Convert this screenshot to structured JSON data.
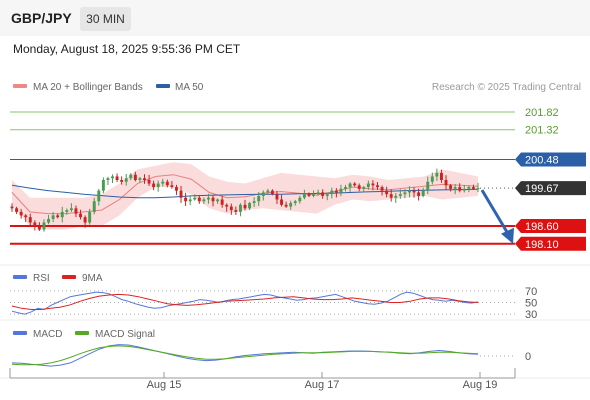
{
  "header": {
    "pair": "GBP/JPY",
    "timeframe": "30 MIN",
    "datetime": "Monday, August 18, 2025 9:55:36 PM CET"
  },
  "legend": {
    "ma_bb": "MA 20 + Bollinger Bands",
    "ma50": "MA 50",
    "copyright": "Research © 2025 Trading Central",
    "rsi": "RSI",
    "rsi_ma": "9MA",
    "macd": "MACD",
    "macd_signal": "MACD Signal"
  },
  "colors": {
    "bull": "#4a9a52",
    "bear": "#cc2222",
    "bb_fill": "#f8d0d0",
    "ma20": "#e88080",
    "ma50": "#2b5fa8",
    "resistance": "#2b5fa8",
    "support": "#dd1111",
    "target": "#8bc46a",
    "arrow": "#2f63b0",
    "rsi": "#5577dd",
    "rsi_ma": "#dd2222",
    "macd": "#5577dd",
    "macd_signal": "#55aa22"
  },
  "chart_data": {
    "type": "candlestick",
    "ylim": [
      197.5,
      202.3
    ],
    "price_levels": [
      {
        "value": 201.82,
        "label": "201.82",
        "kind": "target"
      },
      {
        "value": 201.32,
        "label": "201.32",
        "kind": "target"
      },
      {
        "value": 200.48,
        "label": "200.48",
        "kind": "resistance"
      },
      {
        "value": 199.67,
        "label": "199.67",
        "kind": "last"
      },
      {
        "value": 198.6,
        "label": "198.60",
        "kind": "support"
      },
      {
        "value": 198.1,
        "label": "198.10",
        "kind": "support"
      }
    ],
    "forecast_arrow": {
      "from": 199.67,
      "to": 198.1
    },
    "x_ticks": [
      "Aug 15",
      "Aug 17",
      "Aug 19"
    ],
    "closes": [
      199.1,
      199.0,
      198.9,
      198.85,
      198.7,
      198.6,
      198.5,
      198.7,
      198.8,
      198.9,
      198.85,
      199.0,
      199.05,
      199.1,
      198.95,
      198.85,
      198.7,
      199.0,
      199.3,
      199.6,
      199.9,
      199.95,
      200.0,
      199.9,
      199.85,
      199.95,
      200.05,
      199.9,
      199.95,
      199.9,
      199.8,
      199.7,
      199.8,
      199.85,
      199.75,
      199.7,
      199.6,
      199.4,
      199.3,
      199.35,
      199.4,
      199.3,
      199.35,
      199.4,
      199.3,
      199.35,
      199.2,
      199.15,
      199.05,
      199.0,
      199.2,
      199.1,
      199.25,
      199.3,
      199.45,
      199.55,
      199.6,
      199.5,
      199.35,
      199.2,
      199.15,
      199.25,
      199.3,
      199.4,
      199.5,
      199.45,
      199.5,
      199.55,
      199.45,
      199.5,
      199.6,
      199.55,
      199.65,
      199.7,
      199.8,
      199.75,
      199.65,
      199.7,
      199.8,
      199.75,
      199.7,
      199.6,
      199.5,
      199.4,
      199.45,
      199.5,
      199.55,
      199.6,
      199.55,
      199.45,
      199.6,
      199.85,
      200.0,
      200.1,
      199.9,
      199.75,
      199.65,
      199.7,
      199.6,
      199.65,
      199.7,
      199.65,
      199.67
    ],
    "bb_upper": [
      199.9,
      199.4,
      199.4,
      199.4,
      199.4,
      199.5,
      199.8,
      200.2,
      200.3,
      200.4,
      200.35,
      200.0,
      199.85,
      199.8,
      199.95,
      200.1,
      200.05,
      200.0,
      199.95,
      200.05,
      200.0,
      199.9,
      199.95,
      200.0,
      200.2,
      200.1,
      200.0
    ],
    "bb_lower": [
      199.2,
      198.6,
      198.5,
      198.5,
      198.6,
      198.6,
      198.9,
      199.4,
      199.7,
      199.7,
      199.5,
      199.1,
      198.95,
      199.05,
      199.1,
      199.05,
      199.0,
      198.95,
      199.2,
      199.35,
      199.3,
      199.35,
      199.4,
      199.45,
      199.35,
      199.4,
      199.45
    ],
    "ma50": [
      199.75,
      199.67,
      199.6,
      199.55,
      199.5,
      199.46,
      199.42,
      199.4,
      199.4,
      199.42,
      199.45,
      199.47,
      199.48,
      199.49,
      199.5,
      199.5,
      199.51,
      199.52,
      199.53,
      199.55,
      199.57,
      199.58,
      199.6,
      199.61,
      199.62,
      199.63,
      199.64
    ],
    "rsi": {
      "levels": [
        70,
        50,
        30
      ],
      "ylim": [
        25,
        75
      ],
      "values": [
        35,
        32,
        30,
        34,
        40,
        38,
        45,
        50,
        55,
        60,
        62,
        64,
        66,
        68,
        67,
        65,
        60,
        55,
        52,
        48,
        45,
        42,
        40,
        41,
        44,
        46,
        48,
        50,
        52,
        55,
        54,
        52,
        50,
        53,
        55,
        56,
        58,
        60,
        62,
        64,
        63,
        60,
        58,
        56,
        54,
        55,
        57,
        58,
        60,
        62,
        64,
        60,
        56,
        52,
        50,
        48,
        47,
        49,
        52,
        58,
        64,
        68,
        66,
        62,
        58,
        55,
        54,
        52,
        54,
        52,
        50,
        49,
        51
      ]
    },
    "rsi_ma": [
      44,
      40,
      38,
      38,
      40,
      42,
      46,
      52,
      57,
      61,
      63,
      64,
      63,
      60,
      56,
      52,
      48,
      46,
      45,
      46,
      48,
      50,
      52,
      53,
      54,
      55,
      56,
      58,
      59,
      60,
      58,
      56,
      55,
      55,
      56,
      58,
      56,
      54,
      52,
      50,
      50,
      52,
      56,
      58,
      58,
      56,
      53,
      51,
      50
    ],
    "macd": {
      "ylim": [
        -0.35,
        0.35
      ],
      "zero_label": "0",
      "values": [
        -0.15,
        -0.16,
        -0.18,
        -0.2,
        -0.22,
        -0.2,
        -0.15,
        -0.05,
        0.05,
        0.15,
        0.22,
        0.25,
        0.24,
        0.2,
        0.15,
        0.1,
        0.05,
        0.0,
        -0.05,
        -0.08,
        -0.1,
        -0.09,
        -0.06,
        -0.02,
        0.01,
        0.03,
        0.05,
        0.06,
        0.07,
        0.08,
        0.07,
        0.06,
        0.08,
        0.09,
        0.1,
        0.11,
        0.11,
        0.1,
        0.09,
        0.08,
        0.06,
        0.05,
        0.07,
        0.1,
        0.12,
        0.1,
        0.07,
        0.05,
        0.04
      ],
      "signal": [
        -0.18,
        -0.19,
        -0.19,
        -0.18,
        -0.15,
        -0.1,
        -0.03,
        0.05,
        0.12,
        0.18,
        0.21,
        0.22,
        0.21,
        0.18,
        0.14,
        0.1,
        0.06,
        0.02,
        -0.02,
        -0.05,
        -0.07,
        -0.07,
        -0.06,
        -0.04,
        -0.02,
        0.0,
        0.02,
        0.04,
        0.05,
        0.06,
        0.07,
        0.07,
        0.07,
        0.08,
        0.09,
        0.1,
        0.1,
        0.1,
        0.09,
        0.08,
        0.07,
        0.06,
        0.06,
        0.07,
        0.08,
        0.08,
        0.07,
        0.06,
        0.05
      ]
    }
  }
}
